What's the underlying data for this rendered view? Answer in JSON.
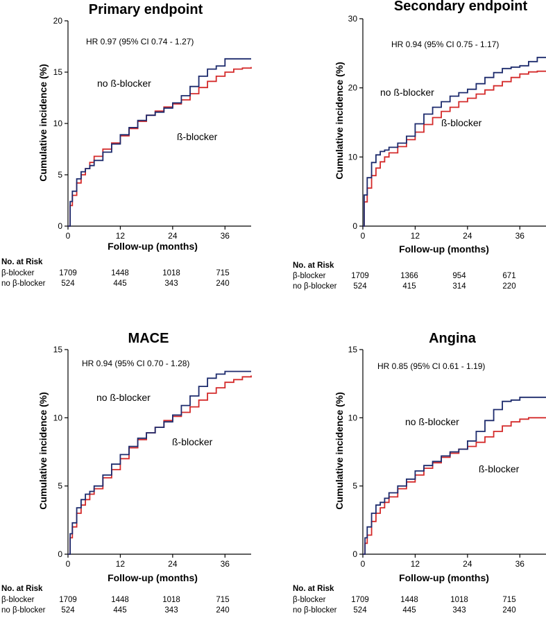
{
  "chart_data": [
    {
      "type": "line",
      "title": "Primary endpoint",
      "hr_text": "HR 0.97 (95% CI 0.74 - 1.27)",
      "xlabel": "Follow-up (months)",
      "ylabel": "Cumulative incidence (%)",
      "xlim": [
        0,
        42
      ],
      "ylim": [
        0,
        20
      ],
      "xticks": [
        0,
        12,
        24,
        36
      ],
      "yticks": [
        0,
        5,
        10,
        15,
        20
      ],
      "series": [
        {
          "name": "β-blocker",
          "color": "#d42a2a",
          "x": [
            0,
            0.5,
            1,
            2,
            3,
            4,
            5,
            6,
            8,
            10,
            12,
            14,
            16,
            18,
            20,
            22,
            24,
            26,
            28,
            30,
            32,
            34,
            36,
            38,
            40,
            42
          ],
          "y": [
            0,
            2.0,
            3.0,
            4.2,
            5.0,
            5.6,
            6.2,
            6.8,
            7.5,
            8.1,
            8.8,
            9.5,
            10.2,
            10.8,
            11.2,
            11.6,
            11.9,
            12.3,
            12.9,
            13.5,
            14.1,
            14.6,
            15.0,
            15.3,
            15.4,
            15.5
          ]
        },
        {
          "name": "no β-blocker",
          "color": "#1c2a6c",
          "x": [
            0,
            0.5,
            1,
            2,
            3,
            4,
            5,
            6,
            8,
            10,
            12,
            14,
            16,
            18,
            20,
            22,
            24,
            26,
            28,
            30,
            32,
            34,
            36,
            38,
            40,
            42
          ],
          "y": [
            0,
            2.4,
            3.4,
            4.6,
            5.3,
            5.6,
            5.9,
            6.4,
            7.2,
            8.0,
            8.9,
            9.6,
            10.3,
            10.8,
            11.1,
            11.5,
            12.0,
            12.7,
            13.6,
            14.6,
            15.3,
            15.6,
            16.3,
            16.3,
            16.3,
            16.3
          ]
        }
      ],
      "curve_labels": [
        "no ß-blocker",
        "ß-blocker"
      ],
      "risk_table": {
        "header": "No. at Risk",
        "rows": [
          {
            "group": "β-blocker",
            "values": [
              "1709",
              "1448",
              "1018",
              "715"
            ]
          },
          {
            "group": "no β-blocker",
            "values": [
              "524",
              "445",
              "343",
              "240"
            ]
          }
        ]
      }
    },
    {
      "type": "line",
      "title": "Secondary endpoint",
      "hr_text": "HR 0.94 (95% CI 0.75 - 1.17)",
      "xlabel": "Follow-up (months)",
      "ylabel": "Cumulative incidence (%)",
      "xlim": [
        0,
        42
      ],
      "ylim": [
        0,
        30
      ],
      "xticks": [
        0,
        12,
        24,
        36
      ],
      "yticks": [
        0,
        10,
        20,
        30
      ],
      "series": [
        {
          "name": "β-blocker",
          "color": "#d42a2a",
          "x": [
            0,
            0.3,
            1,
            2,
            3,
            4,
            5,
            6,
            8,
            10,
            12,
            14,
            16,
            18,
            20,
            22,
            24,
            26,
            28,
            30,
            32,
            34,
            36,
            38,
            40,
            42
          ],
          "y": [
            0,
            3.5,
            5.5,
            7.3,
            8.4,
            9.3,
            10.0,
            10.6,
            11.5,
            12.5,
            13.6,
            14.7,
            15.7,
            16.6,
            17.2,
            18.0,
            18.5,
            19.1,
            19.7,
            20.3,
            20.9,
            21.5,
            22.0,
            22.3,
            22.4,
            22.5
          ]
        },
        {
          "name": "no β-blocker",
          "color": "#1c2a6c",
          "x": [
            0,
            0.3,
            1,
            2,
            3,
            4,
            5,
            6,
            8,
            10,
            12,
            14,
            16,
            18,
            20,
            22,
            24,
            26,
            28,
            30,
            32,
            34,
            36,
            38,
            40,
            42
          ],
          "y": [
            0,
            4.5,
            7.0,
            9.2,
            10.3,
            10.8,
            11.0,
            11.4,
            12.0,
            13.0,
            14.8,
            16.2,
            17.2,
            18.0,
            18.8,
            19.3,
            19.8,
            20.6,
            21.5,
            22.2,
            22.8,
            23.0,
            23.2,
            23.8,
            24.4,
            24.4
          ]
        }
      ],
      "curve_labels": [
        "no ß-blocker",
        "ß-blocker"
      ],
      "risk_table": {
        "header": "No. at Risk",
        "rows": [
          {
            "group": "β-blocker",
            "values": [
              "1709",
              "1366",
              "954",
              "671"
            ]
          },
          {
            "group": "no β-blocker",
            "values": [
              "524",
              "415",
              "314",
              "220"
            ]
          }
        ]
      }
    },
    {
      "type": "line",
      "title": "MACE",
      "hr_text": "HR 0.94 (95% CI 0.70 - 1.28)",
      "xlabel": "Follow-up (months)",
      "ylabel": "Cumulative incidence (%)",
      "xlim": [
        0,
        42
      ],
      "ylim": [
        0,
        15
      ],
      "xticks": [
        0,
        12,
        24,
        36
      ],
      "yticks": [
        0,
        5,
        10,
        15
      ],
      "series": [
        {
          "name": "β-blocker",
          "color": "#d42a2a",
          "x": [
            0,
            0.5,
            1,
            2,
            3,
            4,
            5,
            6,
            8,
            10,
            12,
            14,
            16,
            18,
            20,
            22,
            24,
            26,
            28,
            30,
            32,
            34,
            36,
            38,
            40,
            42
          ],
          "y": [
            0,
            1.2,
            2.0,
            3.0,
            3.6,
            4.0,
            4.4,
            4.8,
            5.6,
            6.2,
            7.0,
            7.8,
            8.4,
            8.9,
            9.3,
            9.8,
            10.1,
            10.4,
            10.8,
            11.3,
            11.8,
            12.2,
            12.6,
            12.8,
            13.0,
            13.1
          ]
        },
        {
          "name": "no β-blocker",
          "color": "#1c2a6c",
          "x": [
            0,
            0.5,
            1,
            2,
            3,
            4,
            5,
            6,
            8,
            10,
            12,
            14,
            16,
            18,
            20,
            22,
            24,
            26,
            28,
            30,
            32,
            34,
            36,
            38,
            40,
            42
          ],
          "y": [
            0,
            1.5,
            2.3,
            3.4,
            4.0,
            4.4,
            4.6,
            5.0,
            5.8,
            6.6,
            7.3,
            7.9,
            8.5,
            8.9,
            9.3,
            9.7,
            10.2,
            10.9,
            11.6,
            12.3,
            12.9,
            13.2,
            13.4,
            13.4,
            13.4,
            13.4
          ]
        }
      ],
      "curve_labels": [
        "no ß-blocker",
        "ß-blocker"
      ],
      "risk_table": {
        "header": "No. at Risk",
        "rows": [
          {
            "group": "β-blocker",
            "values": [
              "1709",
              "1448",
              "1018",
              "715"
            ]
          },
          {
            "group": "no β-blocker",
            "values": [
              "524",
              "445",
              "343",
              "240"
            ]
          }
        ]
      }
    },
    {
      "type": "line",
      "title": "Angina",
      "hr_text": "HR 0.85 (95% CI 0.61 - 1.19)",
      "xlabel": "Follow-up (months)",
      "ylabel": "Cumulative incidence (%)",
      "xlim": [
        0,
        42
      ],
      "ylim": [
        0,
        15
      ],
      "xticks": [
        0,
        12,
        24,
        36
      ],
      "yticks": [
        0,
        5,
        10,
        15
      ],
      "series": [
        {
          "name": "β-blocker",
          "color": "#d42a2a",
          "x": [
            0,
            0.5,
            1,
            2,
            3,
            4,
            5,
            6,
            8,
            10,
            12,
            14,
            16,
            18,
            20,
            22,
            24,
            26,
            28,
            30,
            32,
            34,
            36,
            38,
            40,
            42
          ],
          "y": [
            0,
            0.8,
            1.4,
            2.4,
            3.0,
            3.4,
            3.8,
            4.2,
            4.8,
            5.3,
            5.8,
            6.3,
            6.7,
            7.1,
            7.4,
            7.7,
            7.9,
            8.2,
            8.6,
            9.0,
            9.4,
            9.7,
            9.9,
            10.0,
            10.0,
            10.0
          ]
        },
        {
          "name": "no β-blocker",
          "color": "#1c2a6c",
          "x": [
            0,
            0.5,
            1,
            2,
            3,
            4,
            5,
            6,
            8,
            10,
            12,
            14,
            16,
            18,
            20,
            22,
            24,
            26,
            28,
            30,
            32,
            34,
            36,
            38,
            40,
            42
          ],
          "y": [
            0,
            1.2,
            2.0,
            3.0,
            3.6,
            3.8,
            4.1,
            4.5,
            5.0,
            5.5,
            6.1,
            6.5,
            6.8,
            7.2,
            7.5,
            7.7,
            8.3,
            9.0,
            9.8,
            10.6,
            11.2,
            11.3,
            11.5,
            11.5,
            11.5,
            11.5
          ]
        }
      ],
      "curve_labels": [
        "no ß-blocker",
        "ß-blocker"
      ],
      "risk_table": {
        "header": "No. at Risk",
        "rows": [
          {
            "group": "β-blocker",
            "values": [
              "1709",
              "1448",
              "1018",
              "715"
            ]
          },
          {
            "group": "no β-blocker",
            "values": [
              "524",
              "445",
              "343",
              "240"
            ]
          }
        ]
      }
    }
  ]
}
